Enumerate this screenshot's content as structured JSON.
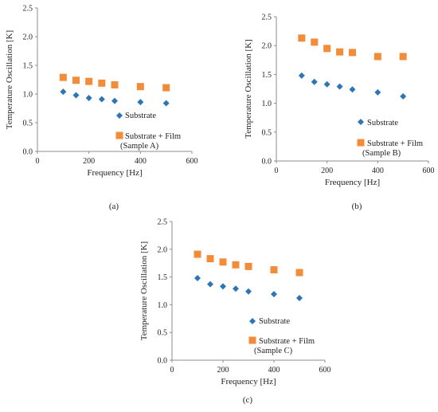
{
  "chart_data": [
    {
      "type": "scatter",
      "caption": "(a)",
      "xlabel": "Frequency [Hz]",
      "ylabel": "Temperature Oscillation [K]",
      "xlim": [
        0,
        600
      ],
      "ylim": [
        0,
        2.5
      ],
      "x_ticks": [
        "0",
        "200",
        "400",
        "600"
      ],
      "y_ticks": [
        "0.0",
        "0.5",
        "1.0",
        "1.5",
        "2.0",
        "2.5"
      ],
      "grid": false,
      "legend_placement": "right-center",
      "series": [
        {
          "name": "Substrate",
          "marker": "diamond",
          "color": "#2e75b6",
          "x": [
            100,
            150,
            200,
            250,
            300,
            400,
            500
          ],
          "y": [
            1.04,
            0.98,
            0.93,
            0.91,
            0.88,
            0.86,
            0.84
          ]
        },
        {
          "name": "Substrate + Film",
          "name_line2": "(Sample A)",
          "marker": "square",
          "color": "#f28c38",
          "x": [
            100,
            150,
            200,
            250,
            300,
            400,
            500
          ],
          "y": [
            1.29,
            1.24,
            1.22,
            1.19,
            1.16,
            1.13,
            1.11
          ]
        }
      ]
    },
    {
      "type": "scatter",
      "caption": "(b)",
      "xlabel": "Frequency [Hz]",
      "ylabel": "Temperature Oscillation [K]",
      "xlim": [
        0,
        600
      ],
      "ylim": [
        0,
        2.5
      ],
      "x_ticks": [
        "0",
        "200",
        "400",
        "600"
      ],
      "y_ticks": [
        "0.0",
        "0.5",
        "1.0",
        "1.5",
        "2.0",
        "2.5"
      ],
      "grid": false,
      "legend_placement": "right-center",
      "series": [
        {
          "name": "Substrate",
          "marker": "diamond",
          "color": "#2e75b6",
          "x": [
            100,
            150,
            200,
            250,
            300,
            400,
            500
          ],
          "y": [
            1.48,
            1.37,
            1.33,
            1.29,
            1.24,
            1.19,
            1.12
          ]
        },
        {
          "name": "Substrate + Film",
          "name_line2": "(Sample B)",
          "marker": "square",
          "color": "#f28c38",
          "x": [
            100,
            150,
            200,
            250,
            300,
            400,
            500
          ],
          "y": [
            2.13,
            2.06,
            1.95,
            1.89,
            1.88,
            1.81,
            1.81
          ]
        }
      ]
    },
    {
      "type": "scatter",
      "caption": "(c)",
      "xlabel": "Frequency [Hz]",
      "ylabel": "Temperature Oscillation [K]",
      "xlim": [
        0,
        600
      ],
      "ylim": [
        0,
        2.5
      ],
      "x_ticks": [
        "0",
        "200",
        "400",
        "600"
      ],
      "y_ticks": [
        "0.0",
        "0.5",
        "1.0",
        "1.5",
        "2.0",
        "2.5"
      ],
      "grid": false,
      "legend_placement": "right-center",
      "series": [
        {
          "name": "Substrate",
          "marker": "diamond",
          "color": "#2e75b6",
          "x": [
            100,
            150,
            200,
            250,
            300,
            400,
            500
          ],
          "y": [
            1.48,
            1.37,
            1.33,
            1.29,
            1.24,
            1.19,
            1.12
          ]
        },
        {
          "name": "Substrate + Film",
          "name_line2": "(Sample C)",
          "marker": "square",
          "color": "#f28c38",
          "x": [
            100,
            150,
            200,
            250,
            300,
            400,
            500
          ],
          "y": [
            1.91,
            1.83,
            1.77,
            1.72,
            1.69,
            1.63,
            1.58
          ]
        }
      ]
    }
  ]
}
